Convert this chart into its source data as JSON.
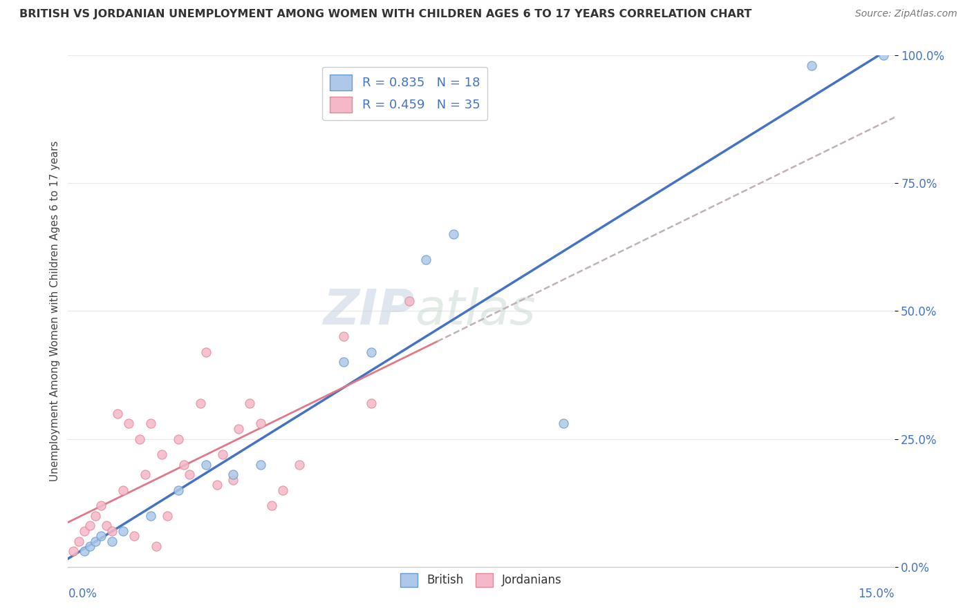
{
  "title": "BRITISH VS JORDANIAN UNEMPLOYMENT AMONG WOMEN WITH CHILDREN AGES 6 TO 17 YEARS CORRELATION CHART",
  "source": "Source: ZipAtlas.com",
  "ylabel": "Unemployment Among Women with Children Ages 6 to 17 years",
  "watermark_left": "ZIP",
  "watermark_right": "atlas",
  "xlim": [
    0.0,
    15.0
  ],
  "ylim": [
    0.0,
    100.0
  ],
  "yticks": [
    0.0,
    25.0,
    50.0,
    75.0,
    100.0
  ],
  "ytick_labels": [
    "0.0%",
    "25.0%",
    "50.0%",
    "75.0%",
    "100.0%"
  ],
  "british_R": 0.835,
  "british_N": 18,
  "jordanian_R": 0.459,
  "jordanian_N": 35,
  "british_color": "#adc8e8",
  "british_edge_color": "#6699cc",
  "british_line_color": "#4472c4",
  "jordanian_color": "#f5b8c8",
  "jordanian_edge_color": "#e08898",
  "jordanian_line_color": "#e07888",
  "jordanian_dash_color": "#d0a8b0",
  "legend_text_color": "#4472c4",
  "legend_N_color": "#e07888",
  "title_color": "#333333",
  "source_color": "#777777",
  "british_x": [
    0.3,
    0.4,
    0.5,
    0.6,
    0.8,
    1.0,
    1.5,
    2.0,
    2.5,
    3.0,
    3.5,
    5.0,
    5.5,
    6.5,
    7.0,
    9.0,
    13.5,
    14.8
  ],
  "british_y": [
    3.0,
    4.0,
    5.0,
    6.0,
    5.0,
    7.0,
    10.0,
    15.0,
    20.0,
    18.0,
    20.0,
    40.0,
    42.0,
    60.0,
    65.0,
    28.0,
    98.0,
    100.0
  ],
  "jordanian_x": [
    0.1,
    0.2,
    0.3,
    0.4,
    0.5,
    0.6,
    0.7,
    0.8,
    0.9,
    1.0,
    1.1,
    1.2,
    1.3,
    1.4,
    1.5,
    1.6,
    1.7,
    1.8,
    2.0,
    2.1,
    2.2,
    2.4,
    2.5,
    2.7,
    2.8,
    3.0,
    3.1,
    3.3,
    3.5,
    3.7,
    3.9,
    4.2,
    5.0,
    5.5,
    6.2
  ],
  "jordanian_y": [
    3.0,
    5.0,
    7.0,
    8.0,
    10.0,
    12.0,
    8.0,
    7.0,
    30.0,
    15.0,
    28.0,
    6.0,
    25.0,
    18.0,
    28.0,
    4.0,
    22.0,
    10.0,
    25.0,
    20.0,
    18.0,
    32.0,
    42.0,
    16.0,
    22.0,
    17.0,
    27.0,
    32.0,
    28.0,
    12.0,
    15.0,
    20.0,
    45.0,
    32.0,
    52.0
  ],
  "background_color": "#ffffff",
  "grid_color": "#e8e8e8",
  "marker_size": 90
}
